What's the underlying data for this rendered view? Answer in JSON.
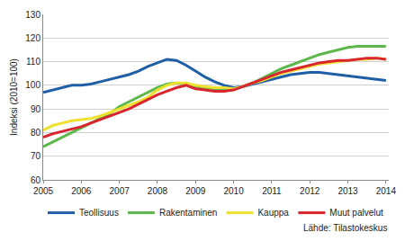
{
  "chart_data": {
    "type": "line",
    "y_label": "Indeksi (2010=100)",
    "source": "Lähde: Tilastokeskus",
    "categories": [
      "2005",
      null,
      null,
      null,
      "2006",
      null,
      null,
      null,
      "2007",
      null,
      null,
      null,
      "2008",
      null,
      null,
      null,
      "2009",
      null,
      null,
      null,
      "2010",
      null,
      null,
      null,
      "2011",
      null,
      null,
      null,
      "2012",
      null,
      null,
      null,
      "2013",
      null,
      null,
      null,
      "2014"
    ],
    "series": [
      {
        "name": "Teollisuus",
        "color": "#1f5fa8",
        "values": [
          97,
          98,
          99,
          100,
          100,
          100.5,
          101.5,
          102.5,
          103.5,
          104.5,
          106,
          108,
          109.5,
          111,
          110.5,
          108.5,
          106,
          103.5,
          101.5,
          100,
          99,
          99.5,
          100.5,
          101.5,
          102.5,
          103.5,
          104.5,
          105,
          105.5,
          105.5,
          105,
          104.5,
          104,
          103.5,
          103,
          102.5,
          102
        ]
      },
      {
        "name": "Rakentaminen",
        "color": "#5cb84a",
        "values": [
          74,
          76,
          78,
          80,
          82,
          84,
          86,
          88,
          91,
          93,
          95,
          97,
          99,
          100.5,
          101,
          100.5,
          99.5,
          99,
          98.5,
          98.5,
          98.5,
          99.5,
          101,
          103,
          105,
          107,
          108.5,
          110,
          111.5,
          113,
          114,
          115,
          116,
          116.5,
          116.5,
          116.5,
          116.5
        ]
      },
      {
        "name": "Kauppa",
        "color": "#f0e130",
        "values": [
          81,
          83,
          84,
          85,
          85.5,
          86,
          87,
          88.5,
          90,
          91.5,
          93,
          95,
          98,
          100,
          101,
          101,
          100,
          99.5,
          99,
          99,
          98.5,
          99.5,
          101,
          102,
          103.5,
          105,
          106,
          107,
          108,
          109,
          109.5,
          110,
          110.5,
          111,
          111,
          111.5,
          111
        ]
      },
      {
        "name": "Muut palvelut",
        "color": "#d9262e",
        "values": [
          78,
          79.5,
          80.5,
          81.5,
          82.5,
          84,
          85.5,
          87,
          88.5,
          90,
          92,
          94,
          96,
          97.5,
          99,
          100,
          98.5,
          98,
          97.5,
          97.5,
          98,
          99.5,
          101,
          102.5,
          104,
          105.5,
          106.5,
          107.5,
          108.5,
          109.5,
          110,
          110.5,
          110.5,
          111,
          111.5,
          111.5,
          111
        ]
      }
    ],
    "ylim": [
      60,
      130
    ],
    "yticks": [
      60,
      70,
      80,
      90,
      100,
      110,
      120,
      130
    ],
    "grid": true,
    "legend": "bottom"
  }
}
